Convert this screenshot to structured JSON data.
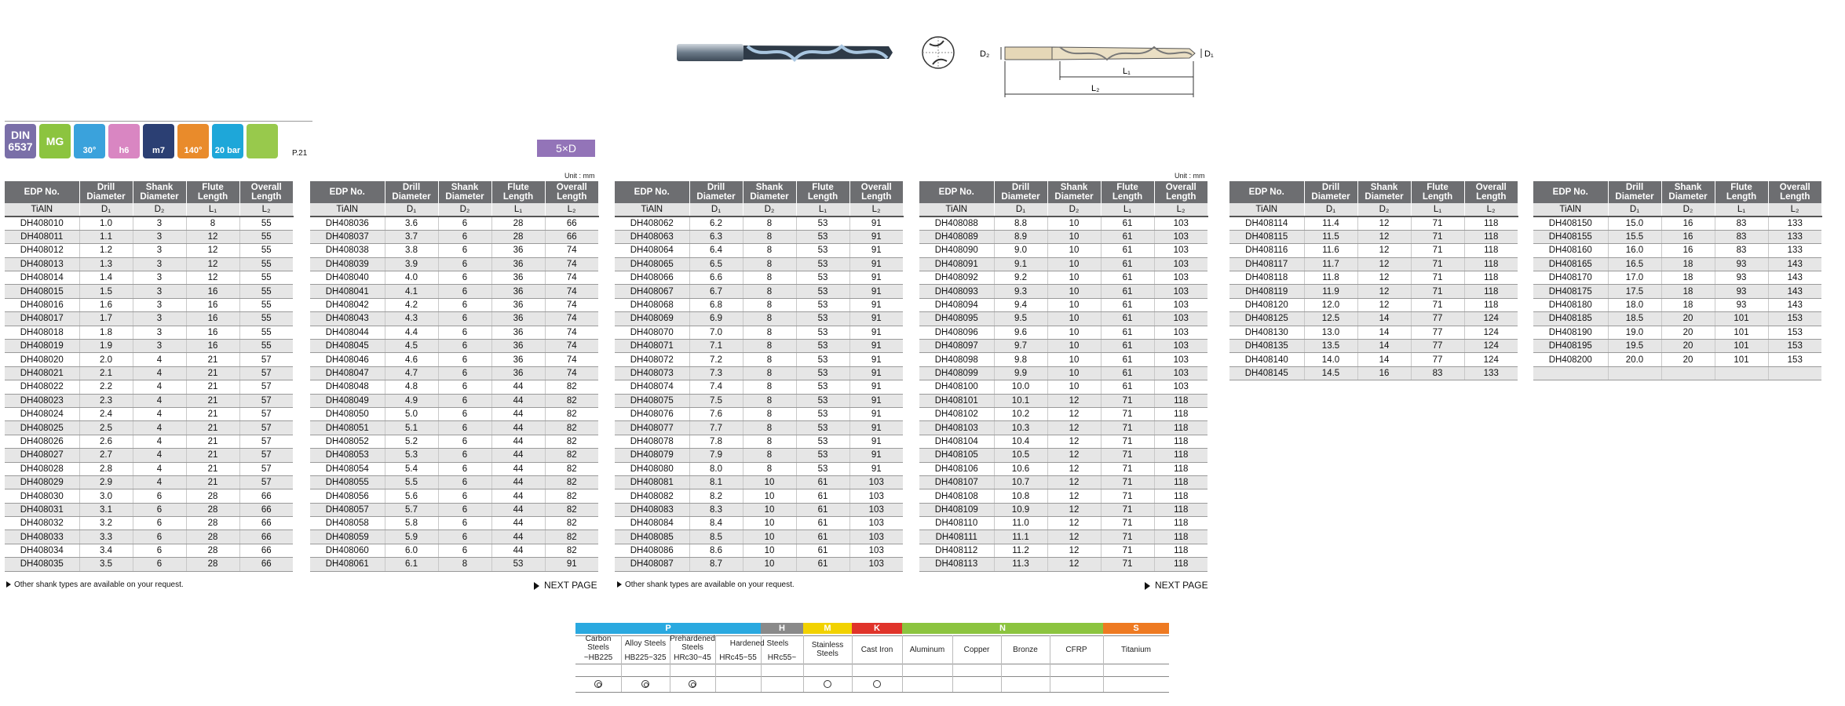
{
  "diagram_labels": {
    "d2": "D₂",
    "d1": "D₁",
    "l1": "L₁",
    "l2": "L₂"
  },
  "icons": {
    "din": "DIN",
    "din_num": "6537",
    "mg": "MG",
    "helix": "30°",
    "shank_tol": "h6",
    "dia_tol": "m7",
    "point": "140°",
    "coolant": "20 bar",
    "page_ref": "P.21"
  },
  "ratio_badge": "5×D",
  "unit": "Unit : mm",
  "headers": [
    "EDP No.",
    "Drill Diameter",
    "Shank Diameter",
    "Flute Length",
    "Overall Length"
  ],
  "subheaders": [
    "TiAlN",
    "D₁",
    "D₂",
    "L₁",
    "L₂"
  ],
  "tables": [
    {
      "rows": [
        [
          "DH408010",
          "1.0",
          "3",
          "8",
          "55"
        ],
        [
          "DH408011",
          "1.1",
          "3",
          "12",
          "55"
        ],
        [
          "DH408012",
          "1.2",
          "3",
          "12",
          "55"
        ],
        [
          "DH408013",
          "1.3",
          "3",
          "12",
          "55"
        ],
        [
          "DH408014",
          "1.4",
          "3",
          "12",
          "55"
        ],
        [
          "DH408015",
          "1.5",
          "3",
          "16",
          "55"
        ],
        [
          "DH408016",
          "1.6",
          "3",
          "16",
          "55"
        ],
        [
          "DH408017",
          "1.7",
          "3",
          "16",
          "55"
        ],
        [
          "DH408018",
          "1.8",
          "3",
          "16",
          "55"
        ],
        [
          "DH408019",
          "1.9",
          "3",
          "16",
          "55"
        ],
        [
          "DH408020",
          "2.0",
          "4",
          "21",
          "57"
        ],
        [
          "DH408021",
          "2.1",
          "4",
          "21",
          "57"
        ],
        [
          "DH408022",
          "2.2",
          "4",
          "21",
          "57"
        ],
        [
          "DH408023",
          "2.3",
          "4",
          "21",
          "57"
        ],
        [
          "DH408024",
          "2.4",
          "4",
          "21",
          "57"
        ],
        [
          "DH408025",
          "2.5",
          "4",
          "21",
          "57"
        ],
        [
          "DH408026",
          "2.6",
          "4",
          "21",
          "57"
        ],
        [
          "DH408027",
          "2.7",
          "4",
          "21",
          "57"
        ],
        [
          "DH408028",
          "2.8",
          "4",
          "21",
          "57"
        ],
        [
          "DH408029",
          "2.9",
          "4",
          "21",
          "57"
        ],
        [
          "DH408030",
          "3.0",
          "6",
          "28",
          "66"
        ],
        [
          "DH408031",
          "3.1",
          "6",
          "28",
          "66"
        ],
        [
          "DH408032",
          "3.2",
          "6",
          "28",
          "66"
        ],
        [
          "DH408033",
          "3.3",
          "6",
          "28",
          "66"
        ],
        [
          "DH408034",
          "3.4",
          "6",
          "28",
          "66"
        ],
        [
          "DH408035",
          "3.5",
          "6",
          "28",
          "66"
        ]
      ]
    },
    {
      "rows": [
        [
          "DH408036",
          "3.6",
          "6",
          "28",
          "66"
        ],
        [
          "DH408037",
          "3.7",
          "6",
          "28",
          "66"
        ],
        [
          "DH408038",
          "3.8",
          "6",
          "36",
          "74"
        ],
        [
          "DH408039",
          "3.9",
          "6",
          "36",
          "74"
        ],
        [
          "DH408040",
          "4.0",
          "6",
          "36",
          "74"
        ],
        [
          "DH408041",
          "4.1",
          "6",
          "36",
          "74"
        ],
        [
          "DH408042",
          "4.2",
          "6",
          "36",
          "74"
        ],
        [
          "DH408043",
          "4.3",
          "6",
          "36",
          "74"
        ],
        [
          "DH408044",
          "4.4",
          "6",
          "36",
          "74"
        ],
        [
          "DH408045",
          "4.5",
          "6",
          "36",
          "74"
        ],
        [
          "DH408046",
          "4.6",
          "6",
          "36",
          "74"
        ],
        [
          "DH408047",
          "4.7",
          "6",
          "36",
          "74"
        ],
        [
          "DH408048",
          "4.8",
          "6",
          "44",
          "82"
        ],
        [
          "DH408049",
          "4.9",
          "6",
          "44",
          "82"
        ],
        [
          "DH408050",
          "5.0",
          "6",
          "44",
          "82"
        ],
        [
          "DH408051",
          "5.1",
          "6",
          "44",
          "82"
        ],
        [
          "DH408052",
          "5.2",
          "6",
          "44",
          "82"
        ],
        [
          "DH408053",
          "5.3",
          "6",
          "44",
          "82"
        ],
        [
          "DH408054",
          "5.4",
          "6",
          "44",
          "82"
        ],
        [
          "DH408055",
          "5.5",
          "6",
          "44",
          "82"
        ],
        [
          "DH408056",
          "5.6",
          "6",
          "44",
          "82"
        ],
        [
          "DH408057",
          "5.7",
          "6",
          "44",
          "82"
        ],
        [
          "DH408058",
          "5.8",
          "6",
          "44",
          "82"
        ],
        [
          "DH408059",
          "5.9",
          "6",
          "44",
          "82"
        ],
        [
          "DH408060",
          "6.0",
          "6",
          "44",
          "82"
        ],
        [
          "DH408061",
          "6.1",
          "8",
          "53",
          "91"
        ]
      ]
    },
    {
      "rows": [
        [
          "DH408062",
          "6.2",
          "8",
          "53",
          "91"
        ],
        [
          "DH408063",
          "6.3",
          "8",
          "53",
          "91"
        ],
        [
          "DH408064",
          "6.4",
          "8",
          "53",
          "91"
        ],
        [
          "DH408065",
          "6.5",
          "8",
          "53",
          "91"
        ],
        [
          "DH408066",
          "6.6",
          "8",
          "53",
          "91"
        ],
        [
          "DH408067",
          "6.7",
          "8",
          "53",
          "91"
        ],
        [
          "DH408068",
          "6.8",
          "8",
          "53",
          "91"
        ],
        [
          "DH408069",
          "6.9",
          "8",
          "53",
          "91"
        ],
        [
          "DH408070",
          "7.0",
          "8",
          "53",
          "91"
        ],
        [
          "DH408071",
          "7.1",
          "8",
          "53",
          "91"
        ],
        [
          "DH408072",
          "7.2",
          "8",
          "53",
          "91"
        ],
        [
          "DH408073",
          "7.3",
          "8",
          "53",
          "91"
        ],
        [
          "DH408074",
          "7.4",
          "8",
          "53",
          "91"
        ],
        [
          "DH408075",
          "7.5",
          "8",
          "53",
          "91"
        ],
        [
          "DH408076",
          "7.6",
          "8",
          "53",
          "91"
        ],
        [
          "DH408077",
          "7.7",
          "8",
          "53",
          "91"
        ],
        [
          "DH408078",
          "7.8",
          "8",
          "53",
          "91"
        ],
        [
          "DH408079",
          "7.9",
          "8",
          "53",
          "91"
        ],
        [
          "DH408080",
          "8.0",
          "8",
          "53",
          "91"
        ],
        [
          "DH408081",
          "8.1",
          "10",
          "61",
          "103"
        ],
        [
          "DH408082",
          "8.2",
          "10",
          "61",
          "103"
        ],
        [
          "DH408083",
          "8.3",
          "10",
          "61",
          "103"
        ],
        [
          "DH408084",
          "8.4",
          "10",
          "61",
          "103"
        ],
        [
          "DH408085",
          "8.5",
          "10",
          "61",
          "103"
        ],
        [
          "DH408086",
          "8.6",
          "10",
          "61",
          "103"
        ],
        [
          "DH408087",
          "8.7",
          "10",
          "61",
          "103"
        ]
      ]
    },
    {
      "rows": [
        [
          "DH408088",
          "8.8",
          "10",
          "61",
          "103"
        ],
        [
          "DH408089",
          "8.9",
          "10",
          "61",
          "103"
        ],
        [
          "DH408090",
          "9.0",
          "10",
          "61",
          "103"
        ],
        [
          "DH408091",
          "9.1",
          "10",
          "61",
          "103"
        ],
        [
          "DH408092",
          "9.2",
          "10",
          "61",
          "103"
        ],
        [
          "DH408093",
          "9.3",
          "10",
          "61",
          "103"
        ],
        [
          "DH408094",
          "9.4",
          "10",
          "61",
          "103"
        ],
        [
          "DH408095",
          "9.5",
          "10",
          "61",
          "103"
        ],
        [
          "DH408096",
          "9.6",
          "10",
          "61",
          "103"
        ],
        [
          "DH408097",
          "9.7",
          "10",
          "61",
          "103"
        ],
        [
          "DH408098",
          "9.8",
          "10",
          "61",
          "103"
        ],
        [
          "DH408099",
          "9.9",
          "10",
          "61",
          "103"
        ],
        [
          "DH408100",
          "10.0",
          "10",
          "61",
          "103"
        ],
        [
          "DH408101",
          "10.1",
          "12",
          "71",
          "118"
        ],
        [
          "DH408102",
          "10.2",
          "12",
          "71",
          "118"
        ],
        [
          "DH408103",
          "10.3",
          "12",
          "71",
          "118"
        ],
        [
          "DH408104",
          "10.4",
          "12",
          "71",
          "118"
        ],
        [
          "DH408105",
          "10.5",
          "12",
          "71",
          "118"
        ],
        [
          "DH408106",
          "10.6",
          "12",
          "71",
          "118"
        ],
        [
          "DH408107",
          "10.7",
          "12",
          "71",
          "118"
        ],
        [
          "DH408108",
          "10.8",
          "12",
          "71",
          "118"
        ],
        [
          "DH408109",
          "10.9",
          "12",
          "71",
          "118"
        ],
        [
          "DH408110",
          "11.0",
          "12",
          "71",
          "118"
        ],
        [
          "DH408111",
          "11.1",
          "12",
          "71",
          "118"
        ],
        [
          "DH408112",
          "11.2",
          "12",
          "71",
          "118"
        ],
        [
          "DH408113",
          "11.3",
          "12",
          "71",
          "118"
        ]
      ]
    },
    {
      "rows": [
        [
          "DH408114",
          "11.4",
          "12",
          "71",
          "118"
        ],
        [
          "DH408115",
          "11.5",
          "12",
          "71",
          "118"
        ],
        [
          "DH408116",
          "11.6",
          "12",
          "71",
          "118"
        ],
        [
          "DH408117",
          "11.7",
          "12",
          "71",
          "118"
        ],
        [
          "DH408118",
          "11.8",
          "12",
          "71",
          "118"
        ],
        [
          "DH408119",
          "11.9",
          "12",
          "71",
          "118"
        ],
        [
          "DH408120",
          "12.0",
          "12",
          "71",
          "118"
        ],
        [
          "DH408125",
          "12.5",
          "14",
          "77",
          "124"
        ],
        [
          "DH408130",
          "13.0",
          "14",
          "77",
          "124"
        ],
        [
          "DH408135",
          "13.5",
          "14",
          "77",
          "124"
        ],
        [
          "DH408140",
          "14.0",
          "14",
          "77",
          "124"
        ],
        [
          "DH408145",
          "14.5",
          "16",
          "83",
          "133"
        ]
      ]
    },
    {
      "rows": [
        [
          "DH408150",
          "15.0",
          "16",
          "83",
          "133"
        ],
        [
          "DH408155",
          "15.5",
          "16",
          "83",
          "133"
        ],
        [
          "DH408160",
          "16.0",
          "16",
          "83",
          "133"
        ],
        [
          "DH408165",
          "16.5",
          "18",
          "93",
          "143"
        ],
        [
          "DH408170",
          "17.0",
          "18",
          "93",
          "143"
        ],
        [
          "DH408175",
          "17.5",
          "18",
          "93",
          "143"
        ],
        [
          "DH408180",
          "18.0",
          "18",
          "93",
          "143"
        ],
        [
          "DH408185",
          "18.5",
          "20",
          "101",
          "153"
        ],
        [
          "DH408190",
          "19.0",
          "20",
          "101",
          "153"
        ],
        [
          "DH408195",
          "19.5",
          "20",
          "101",
          "153"
        ],
        [
          "DH408200",
          "20.0",
          "20",
          "101",
          "153"
        ],
        [
          "",
          "",
          "",
          "",
          ""
        ]
      ]
    }
  ],
  "notes": {
    "other_shank": "Other shank types are available on your request.",
    "next_page": "NEXT PAGE"
  },
  "materials": {
    "groups": [
      {
        "code": "P",
        "color": "#2aa9e0"
      },
      {
        "code": "H",
        "color": "#8a8a8a"
      },
      {
        "code": "M",
        "color": "#f2d200"
      },
      {
        "code": "K",
        "color": "#e0332a"
      },
      {
        "code": "N",
        "color": "#8cc43f"
      },
      {
        "code": "S",
        "color": "#ee7a22"
      }
    ],
    "columns": [
      {
        "name": "Carbon Steels",
        "hard": "~HB225",
        "mark": "double"
      },
      {
        "name": "Alloy Steels",
        "hard": "HB225~325",
        "mark": "double"
      },
      {
        "name": "Prehardened Steels",
        "hard": "HRc30~45",
        "mark": "double"
      },
      {
        "name": "Hardened Steels",
        "hard": "HRc45~55",
        "mark": ""
      },
      {
        "name": "",
        "hard": "HRc55~",
        "mark": ""
      },
      {
        "name": "Stainless Steels",
        "hard": "",
        "mark": "single"
      },
      {
        "name": "Cast Iron",
        "hard": "",
        "mark": "single"
      },
      {
        "name": "Aluminum",
        "hard": "",
        "mark": ""
      },
      {
        "name": "Copper",
        "hard": "",
        "mark": ""
      },
      {
        "name": "Bronze",
        "hard": "",
        "mark": ""
      },
      {
        "name": "CFRP",
        "hard": "",
        "mark": ""
      },
      {
        "name": "Titanium",
        "hard": "",
        "mark": ""
      }
    ]
  }
}
